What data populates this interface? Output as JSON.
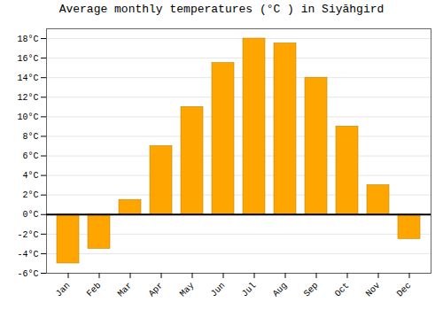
{
  "chart_data": {
    "type": "bar",
    "title": "Average monthly temperatures (°C ) in Siyāhgird",
    "categories": [
      "Jan",
      "Feb",
      "Mar",
      "Apr",
      "May",
      "Jun",
      "Jul",
      "Aug",
      "Sep",
      "Oct",
      "Nov",
      "Dec"
    ],
    "values": [
      -5.0,
      -3.5,
      1.5,
      7.0,
      11.0,
      15.5,
      18.0,
      17.5,
      14.0,
      9.0,
      3.0,
      -2.5
    ],
    "color": "#FFA500",
    "ylim": [
      -6,
      19
    ],
    "yticks": [
      {
        "value": -6,
        "label": "-6°C"
      },
      {
        "value": -4,
        "label": "-4°C"
      },
      {
        "value": -2,
        "label": "-2°C"
      },
      {
        "value": 0,
        "label": "0°C"
      },
      {
        "value": 2,
        "label": "2°C"
      },
      {
        "value": 4,
        "label": "4°C"
      },
      {
        "value": 6,
        "label": "6°C"
      },
      {
        "value": 8,
        "label": "8°C"
      },
      {
        "value": 10,
        "label": "10°C"
      },
      {
        "value": 12,
        "label": "12°C"
      },
      {
        "value": 14,
        "label": "14°C"
      },
      {
        "value": 16,
        "label": "16°C"
      },
      {
        "value": 18,
        "label": "18°C"
      }
    ],
    "grid": true
  }
}
